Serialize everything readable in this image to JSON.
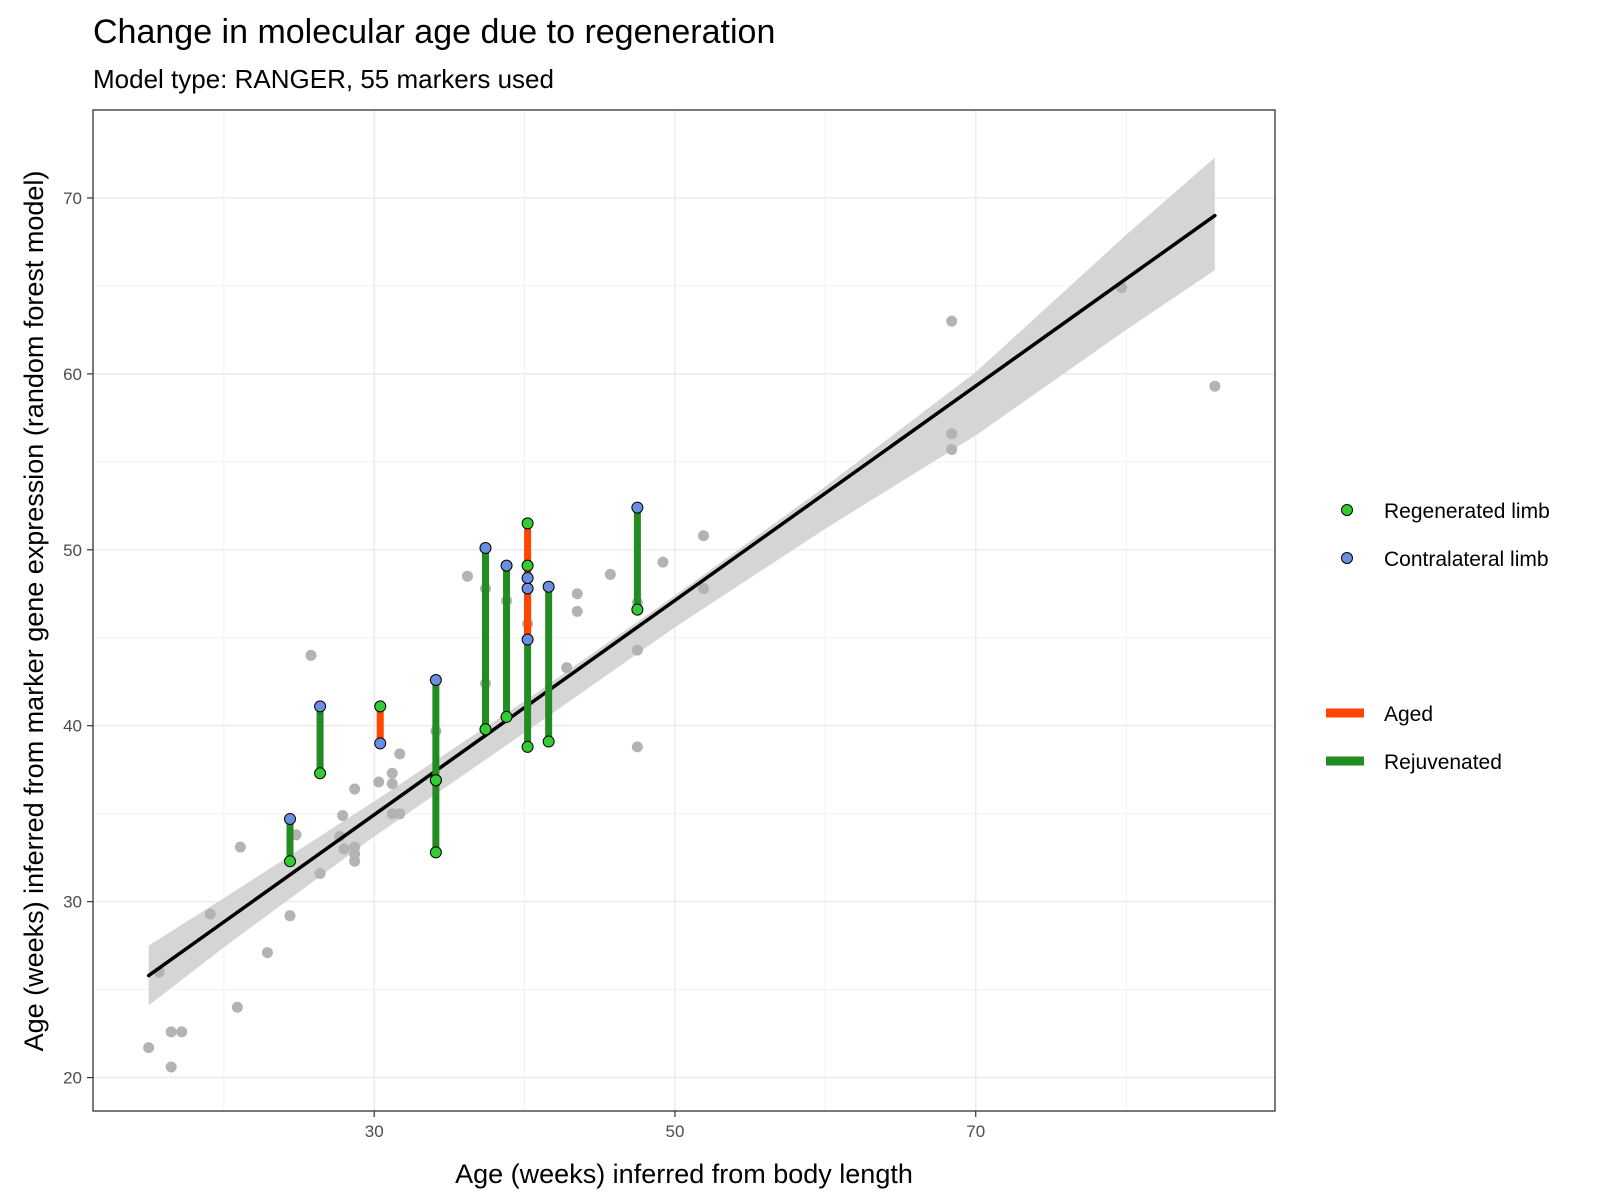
{
  "chart_data": {
    "type": "scatter",
    "title": "Change in molecular age due to regeneration",
    "subtitle": "Model type: RANGER, 55 markers used",
    "xlabel": "Age (weeks) inferred from body length",
    "ylabel": "Age (weeks) inferred from marker gene expression (random forest model)",
    "xlim": [
      11.3,
      89.9
    ],
    "ylim": [
      18.1,
      75.0
    ],
    "x_ticks": [
      30,
      50,
      70
    ],
    "x_tick_labels": [
      "30",
      "50",
      "70"
    ],
    "y_ticks": [
      20,
      30,
      40,
      50,
      60,
      70
    ],
    "y_tick_labels": [
      "20",
      "30",
      "40",
      "50",
      "60",
      "70"
    ],
    "grid": true,
    "legend_position": "right",
    "colors": {
      "background_points": "#b3b3b3",
      "regenerated": "#33cc33",
      "contralateral": "#6b8fe0",
      "aged": "#ff4500",
      "rejuvenated": "#228b22",
      "fit_line": "#000000",
      "confidence_band": "#d3d3d3"
    },
    "background_points": [
      {
        "x": 15.0,
        "y": 21.7
      },
      {
        "x": 16.5,
        "y": 22.6
      },
      {
        "x": 17.2,
        "y": 22.6
      },
      {
        "x": 16.5,
        "y": 20.6
      },
      {
        "x": 15.7,
        "y": 26.0
      },
      {
        "x": 20.9,
        "y": 24.0
      },
      {
        "x": 19.1,
        "y": 29.3
      },
      {
        "x": 21.1,
        "y": 33.1
      },
      {
        "x": 22.9,
        "y": 27.1
      },
      {
        "x": 24.4,
        "y": 29.2
      },
      {
        "x": 24.8,
        "y": 33.8
      },
      {
        "x": 25.8,
        "y": 44.0
      },
      {
        "x": 26.4,
        "y": 31.6
      },
      {
        "x": 27.7,
        "y": 33.7
      },
      {
        "x": 27.9,
        "y": 34.9
      },
      {
        "x": 28.0,
        "y": 33.0
      },
      {
        "x": 28.7,
        "y": 33.1
      },
      {
        "x": 28.7,
        "y": 32.7
      },
      {
        "x": 28.7,
        "y": 32.3
      },
      {
        "x": 28.7,
        "y": 36.4
      },
      {
        "x": 30.3,
        "y": 36.8
      },
      {
        "x": 31.2,
        "y": 37.3
      },
      {
        "x": 31.2,
        "y": 36.7
      },
      {
        "x": 31.2,
        "y": 35.0
      },
      {
        "x": 31.7,
        "y": 35.0
      },
      {
        "x": 31.7,
        "y": 38.4
      },
      {
        "x": 34.1,
        "y": 39.7
      },
      {
        "x": 36.2,
        "y": 48.5
      },
      {
        "x": 37.4,
        "y": 47.8
      },
      {
        "x": 37.4,
        "y": 42.4
      },
      {
        "x": 38.8,
        "y": 47.1
      },
      {
        "x": 40.2,
        "y": 45.8
      },
      {
        "x": 42.8,
        "y": 43.3
      },
      {
        "x": 43.5,
        "y": 47.5
      },
      {
        "x": 43.5,
        "y": 46.5
      },
      {
        "x": 45.7,
        "y": 48.6
      },
      {
        "x": 47.5,
        "y": 47.0
      },
      {
        "x": 47.5,
        "y": 44.3
      },
      {
        "x": 47.5,
        "y": 38.8
      },
      {
        "x": 49.2,
        "y": 49.3
      },
      {
        "x": 51.9,
        "y": 50.8
      },
      {
        "x": 51.9,
        "y": 47.8
      },
      {
        "x": 68.4,
        "y": 63.0
      },
      {
        "x": 68.4,
        "y": 56.6
      },
      {
        "x": 68.4,
        "y": 55.7
      },
      {
        "x": 79.7,
        "y": 64.9
      },
      {
        "x": 85.9,
        "y": 59.3
      }
    ],
    "pairs": [
      {
        "x": 24.4,
        "regenerated": 32.3,
        "contralateral": 34.7,
        "change": "Rejuvenated"
      },
      {
        "x": 26.4,
        "regenerated": 37.3,
        "contralateral": 41.1,
        "change": "Rejuvenated"
      },
      {
        "x": 30.4,
        "regenerated": 41.1,
        "contralateral": 39.0,
        "change": "Aged"
      },
      {
        "x": 34.1,
        "regenerated": 32.8,
        "contralateral": 42.6,
        "change": "Rejuvenated"
      },
      {
        "x": 34.1,
        "regenerated": 36.9,
        "contralateral": 36.9,
        "change": "Rejuvenated"
      },
      {
        "x": 37.4,
        "regenerated": 39.8,
        "contralateral": 50.1,
        "change": "Rejuvenated"
      },
      {
        "x": 38.8,
        "regenerated": 40.5,
        "contralateral": 49.1,
        "change": "Rejuvenated"
      },
      {
        "x": 40.2,
        "regenerated": 38.8,
        "contralateral": 47.8,
        "change": "Rejuvenated"
      },
      {
        "x": 40.2,
        "regenerated": 49.1,
        "contralateral": 44.9,
        "change": "Aged"
      },
      {
        "x": 40.2,
        "regenerated": 51.5,
        "contralateral": 48.4,
        "change": "Aged"
      },
      {
        "x": 41.6,
        "regenerated": 39.1,
        "contralateral": 47.9,
        "change": "Rejuvenated"
      },
      {
        "x": 47.5,
        "regenerated": 46.6,
        "contralateral": 52.4,
        "change": "Rejuvenated"
      }
    ],
    "fit_line": {
      "x": [
        15.0,
        85.9
      ],
      "y": [
        25.8,
        69.0
      ]
    },
    "confidence_band": {
      "x": [
        15.0,
        20.0,
        30.0,
        40.0,
        50.0,
        60.0,
        70.0,
        80.0,
        85.9
      ],
      "upper": [
        27.5,
        30.2,
        35.7,
        41.4,
        47.4,
        53.6,
        60.1,
        67.9,
        72.3
      ],
      "lower": [
        24.1,
        27.4,
        33.7,
        39.6,
        45.6,
        51.2,
        56.5,
        62.5,
        65.9
      ]
    },
    "legend": {
      "points": [
        {
          "label": "Regenerated limb",
          "key": "regenerated"
        },
        {
          "label": "Contralateral limb",
          "key": "contralateral"
        }
      ],
      "lines": [
        {
          "label": "Aged",
          "key": "aged"
        },
        {
          "label": "Rejuvenated",
          "key": "rejuvenated"
        }
      ]
    }
  }
}
